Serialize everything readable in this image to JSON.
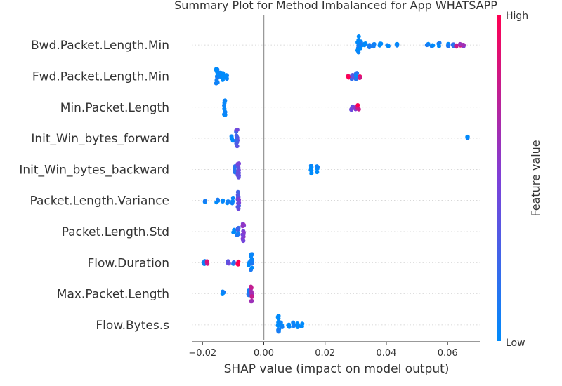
{
  "chart_data": {
    "type": "scatter",
    "title": "Summary Plot for Method Imbalanced for App WHATSAPP",
    "xlabel": "SHAP value (impact on model output)",
    "ylabel": "",
    "xlim": [
      -0.0235,
      0.0705
    ],
    "xticks": [
      -0.02,
      0.0,
      0.02,
      0.04,
      0.06
    ],
    "xtick_labels": [
      "−0.02",
      "0.00",
      "0.02",
      "0.04",
      "0.06"
    ],
    "grid": false,
    "categories": [
      "Bwd.Packet.Length.Min",
      "Fwd.Packet.Length.Min",
      "Min.Packet.Length",
      "Init_Win_bytes_forward",
      "Init_Win_bytes_backward",
      "Packet.Length.Variance",
      "Packet.Length.Std",
      "Flow.Duration",
      "Max.Packet.Length",
      "Flow.Bytes.s"
    ],
    "clusters": [
      [
        [
          0.0308,
          0.0,
          0.55
        ],
        [
          0.0318,
          0.0,
          0.25
        ],
        [
          0.033,
          0.0,
          0.18
        ],
        [
          0.0345,
          0.05,
          0.15
        ],
        [
          0.036,
          0.0,
          0.12
        ],
        [
          0.038,
          0.0,
          0.1
        ],
        [
          0.0405,
          0.0,
          0.08
        ],
        [
          0.0435,
          0.0,
          0.06
        ],
        [
          0.0535,
          0.0,
          0.12
        ],
        [
          0.055,
          0.0,
          0.1
        ],
        [
          0.0572,
          0.05,
          0.15
        ],
        [
          0.06,
          0.0,
          0.08
        ],
        [
          0.0618,
          0.2,
          0.08
        ],
        [
          0.0628,
          0.85,
          0.12
        ],
        [
          0.064,
          0.7,
          0.1
        ],
        [
          0.0652,
          0.6,
          0.08
        ]
      ],
      [
        [
          -0.0153,
          0.0,
          0.5
        ],
        [
          -0.0142,
          0.0,
          0.3
        ],
        [
          -0.0132,
          0.0,
          0.25
        ],
        [
          -0.0122,
          0.0,
          0.2
        ],
        [
          0.0275,
          0.9,
          0.12
        ],
        [
          0.0288,
          0.3,
          0.2
        ],
        [
          0.0302,
          0.1,
          0.25
        ],
        [
          0.0315,
          0.85,
          0.15
        ]
      ],
      [
        [
          -0.0127,
          0.0,
          0.55
        ],
        [
          0.0288,
          0.35,
          0.2
        ],
        [
          0.0298,
          0.6,
          0.15
        ],
        [
          0.0308,
          0.9,
          0.15
        ]
      ],
      [
        [
          -0.0103,
          0.05,
          0.2
        ],
        [
          -0.0088,
          0.35,
          0.55
        ],
        [
          0.0663,
          0.0,
          0.1
        ]
      ],
      [
        [
          -0.0095,
          0.1,
          0.3
        ],
        [
          -0.0083,
          0.45,
          0.55
        ],
        [
          0.0155,
          0.0,
          0.3
        ],
        [
          0.0175,
          0.05,
          0.25
        ]
      ],
      [
        [
          -0.0193,
          0.0,
          0.12
        ],
        [
          -0.0152,
          0.0,
          0.12
        ],
        [
          -0.0135,
          0.0,
          0.1
        ],
        [
          -0.0118,
          0.0,
          0.18
        ],
        [
          -0.0102,
          0.0,
          0.18
        ],
        [
          -0.0083,
          0.4,
          0.6
        ]
      ],
      [
        [
          -0.0098,
          0.0,
          0.15
        ],
        [
          -0.0085,
          0.2,
          0.25
        ],
        [
          -0.0067,
          0.55,
          0.6
        ]
      ],
      [
        [
          -0.0195,
          0.0,
          0.1
        ],
        [
          -0.0183,
          0.85,
          0.1
        ],
        [
          -0.0115,
          0.4,
          0.12
        ],
        [
          -0.0098,
          0.1,
          0.1
        ],
        [
          -0.0085,
          0.9,
          0.12
        ],
        [
          -0.0048,
          0.0,
          0.2
        ],
        [
          -0.004,
          0.05,
          0.55
        ]
      ],
      [
        [
          -0.0133,
          0.0,
          0.15
        ],
        [
          -0.0048,
          0.05,
          0.2
        ],
        [
          -0.004,
          0.7,
          0.55
        ]
      ],
      [
        [
          0.0048,
          0.0,
          0.6
        ],
        [
          0.0058,
          0.0,
          0.15
        ],
        [
          0.0082,
          0.0,
          0.15
        ],
        [
          0.0098,
          0.0,
          0.15
        ],
        [
          0.0112,
          0.0,
          0.15
        ],
        [
          0.0125,
          0.0,
          0.12
        ]
      ]
    ],
    "colorbar": {
      "label": "Feature value",
      "high_label": "High",
      "low_label": "Low",
      "low_color": "#008bfb",
      "high_color": "#ff0052"
    }
  }
}
